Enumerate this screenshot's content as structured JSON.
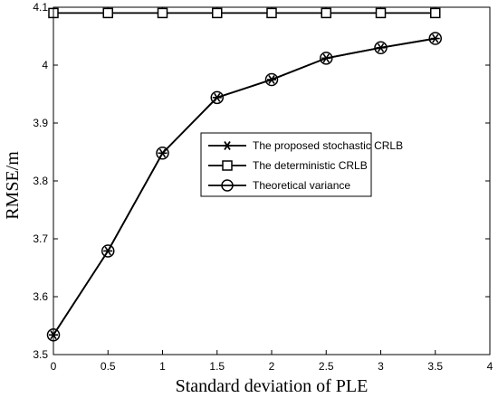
{
  "chart_data": {
    "type": "line",
    "xlabel": "Standard deviation of PLE",
    "ylabel": "RMSE/m",
    "xlim": [
      0,
      4
    ],
    "ylim": [
      3.5,
      4.1
    ],
    "xticks": [
      "0",
      "0.5",
      "1",
      "1.5",
      "2",
      "2.5",
      "3",
      "3.5",
      "4"
    ],
    "yticks": [
      "3.5",
      "3.6",
      "3.7",
      "3.8",
      "3.9",
      "4",
      "4.1"
    ],
    "grid": false,
    "legend_position": "center-right",
    "x": [
      0,
      0.5,
      1,
      1.5,
      2,
      2.5,
      3,
      3.5
    ],
    "series": [
      {
        "name": "The proposed stochastic CRLB",
        "marker": "asterisk",
        "color": "#000000",
        "values": [
          3.534,
          3.679,
          3.848,
          3.944,
          3.975,
          4.012,
          4.03,
          4.046
        ]
      },
      {
        "name": "The deterministic CRLB",
        "marker": "square",
        "color": "#000000",
        "values": [
          4.09,
          4.09,
          4.09,
          4.09,
          4.09,
          4.09,
          4.09,
          4.09
        ]
      },
      {
        "name": "Theoretical variance",
        "marker": "circle",
        "color": "#000000",
        "values": [
          3.534,
          3.679,
          3.848,
          3.944,
          3.975,
          4.012,
          4.03,
          4.046
        ]
      }
    ]
  }
}
